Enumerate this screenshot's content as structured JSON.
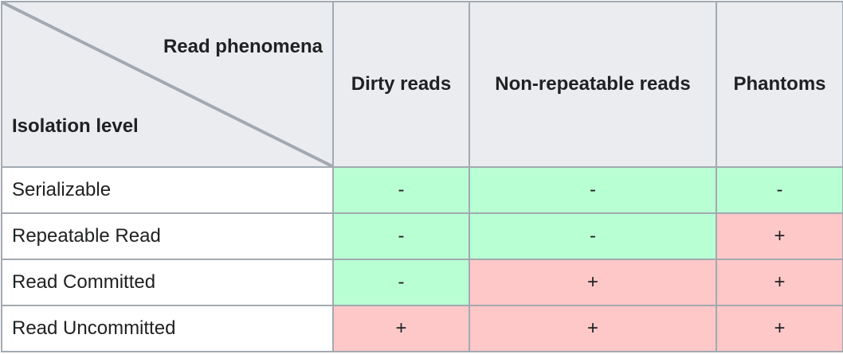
{
  "header": {
    "corner_top": "Read phenomena",
    "corner_bottom": "Isolation level",
    "columns": [
      "Dirty reads",
      "Non-repeatable reads",
      "Phantoms"
    ]
  },
  "rows": [
    {
      "level": "Serializable",
      "cells": [
        "-",
        "-",
        "-"
      ]
    },
    {
      "level": "Repeatable Read",
      "cells": [
        "-",
        "-",
        "+"
      ]
    },
    {
      "level": "Read Committed",
      "cells": [
        "-",
        "+",
        "+"
      ]
    },
    {
      "level": "Read Uncommitted",
      "cells": [
        "+",
        "+",
        "+"
      ]
    }
  ],
  "colors": {
    "header_bg": "#eaecf0",
    "border": "#a2a9b1",
    "diagonal": "#a2a9b1",
    "minus_bg": "#b9ffd4",
    "plus_bg": "#ffc8c8"
  }
}
